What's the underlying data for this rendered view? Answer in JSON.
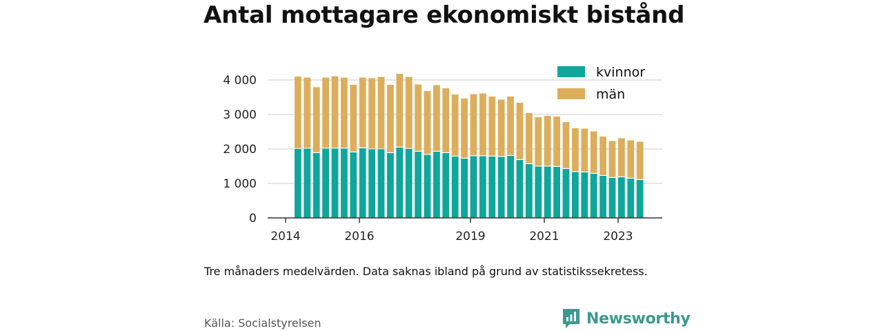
{
  "title": "Antal mottagare ekonomiskt bistånd",
  "note": "Tre månaders medelvärden. Data saknas ibland på grund av statistikssekretess.",
  "source": "Källa: Socialstyrelsen",
  "brand": "Newsworthy",
  "colors": {
    "kvinnor": "#0fa69b",
    "man": "#dcae5c",
    "brand": "#3a9a8e"
  },
  "chart_data": {
    "type": "bar",
    "stacked": true,
    "x_ticks": [
      "2014",
      "2016",
      "2019",
      "2021",
      "2023"
    ],
    "y_ticks": [
      "0",
      "1 000",
      "2 000",
      "3 000",
      "4 000"
    ],
    "ylim": [
      0,
      4300
    ],
    "grid": true,
    "legend_position": "top-right",
    "series": [
      {
        "name": "kvinnor",
        "color": "#0fa69b",
        "values": [
          2000,
          2010,
          1880,
          2010,
          2010,
          2010,
          1900,
          2020,
          1990,
          1990,
          1880,
          2040,
          2000,
          1920,
          1830,
          1920,
          1880,
          1780,
          1720,
          1790,
          1790,
          1780,
          1770,
          1800,
          1680,
          1560,
          1490,
          1490,
          1480,
          1420,
          1330,
          1320,
          1280,
          1220,
          1160,
          1180,
          1140,
          1100
        ]
      },
      {
        "name": "män",
        "color": "#dcae5c",
        "values": [
          2100,
          2060,
          1910,
          2060,
          2100,
          2060,
          1960,
          2050,
          2060,
          2100,
          1980,
          2140,
          2090,
          1950,
          1850,
          1930,
          1880,
          1800,
          1740,
          1800,
          1820,
          1740,
          1660,
          1720,
          1660,
          1480,
          1430,
          1470,
          1460,
          1360,
          1270,
          1270,
          1230,
          1140,
          1070,
          1130,
          1110,
          1110
        ]
      }
    ]
  }
}
